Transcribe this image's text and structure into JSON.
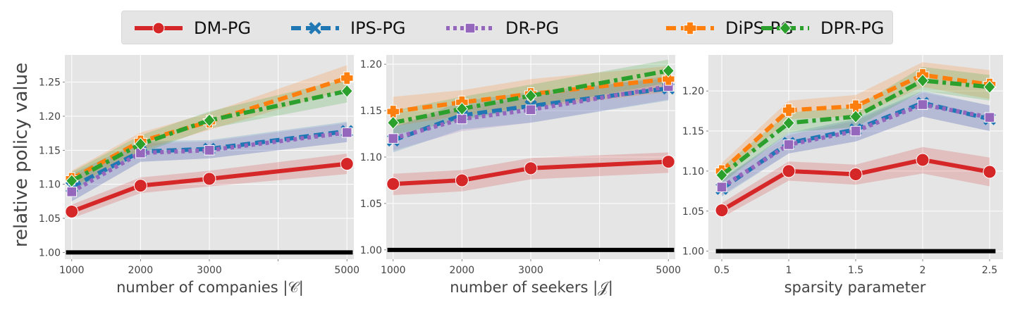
{
  "legend": {
    "items": [
      {
        "label": "DM-PG",
        "color": "#d62728",
        "marker": "circle",
        "dash": "solid"
      },
      {
        "label": "IPS-PG",
        "color": "#1f77b4",
        "marker": "x",
        "dash": "dashed"
      },
      {
        "label": "DR-PG",
        "color": "#9467bd",
        "marker": "square",
        "dash": "dotted"
      },
      {
        "label": "DiPS-PG",
        "color": "#ff7f0e",
        "marker": "plus",
        "dash": "dashed"
      },
      {
        "label": "DPR-PG",
        "color": "#2ca02c",
        "marker": "diamond",
        "dash": "dashdot"
      }
    ]
  },
  "shared_ylabel": "relative policy value",
  "chart_data": [
    {
      "type": "line",
      "xlabel": "number of companies |𝒞|",
      "ylabel": "relative policy value",
      "x": [
        1000,
        2000,
        3000,
        5000
      ],
      "xticks": [
        1000,
        2000,
        3000,
        4000,
        5000
      ],
      "xtick_labels": [
        "1000",
        "2000",
        "3000",
        "",
        "5000"
      ],
      "xlim": [
        900,
        5100
      ],
      "ylim": [
        0.99,
        1.29
      ],
      "yticks": [
        1.0,
        1.05,
        1.1,
        1.15,
        1.2,
        1.25
      ],
      "ytick_labels": [
        "1.00",
        "1.05",
        "1.10",
        "1.15",
        "1.20",
        "1.25"
      ],
      "baseline": 1.0,
      "grid": true,
      "series": [
        {
          "name": "DM-PG",
          "values": [
            1.06,
            1.098,
            1.108,
            1.13
          ],
          "lower": [
            1.05,
            1.087,
            1.097,
            1.115
          ],
          "upper": [
            1.07,
            1.11,
            1.12,
            1.145
          ]
        },
        {
          "name": "IPS-PG",
          "values": [
            1.096,
            1.148,
            1.152,
            1.178
          ],
          "lower": [
            1.075,
            1.133,
            1.138,
            1.162
          ],
          "upper": [
            1.115,
            1.163,
            1.165,
            1.192
          ]
        },
        {
          "name": "DR-PG",
          "values": [
            1.089,
            1.146,
            1.15,
            1.176
          ],
          "lower": [
            1.075,
            1.133,
            1.138,
            1.162
          ],
          "upper": [
            1.11,
            1.16,
            1.163,
            1.19
          ]
        },
        {
          "name": "DiPS-PG",
          "values": [
            1.108,
            1.163,
            1.192,
            1.256
          ],
          "lower": [
            1.095,
            1.15,
            1.18,
            1.24
          ],
          "upper": [
            1.12,
            1.176,
            1.205,
            1.275
          ]
        },
        {
          "name": "DPR-PG",
          "values": [
            1.105,
            1.159,
            1.194,
            1.237
          ],
          "lower": [
            1.09,
            1.145,
            1.182,
            1.22
          ],
          "upper": [
            1.118,
            1.172,
            1.207,
            1.255
          ]
        }
      ]
    },
    {
      "type": "line",
      "xlabel": "number of seekers |𝒥|",
      "ylabel": "",
      "x": [
        1000,
        2000,
        3000,
        5000
      ],
      "xticks": [
        1000,
        2000,
        3000,
        4000,
        5000
      ],
      "xtick_labels": [
        "1000",
        "2000",
        "3000",
        "",
        "5000"
      ],
      "xlim": [
        900,
        5100
      ],
      "ylim": [
        0.99,
        1.21
      ],
      "yticks": [
        1.0,
        1.05,
        1.1,
        1.15,
        1.2
      ],
      "ytick_labels": [
        "1.00",
        "1.05",
        "1.10",
        "1.15",
        "1.20"
      ],
      "baseline": 1.0,
      "grid": true,
      "series": [
        {
          "name": "DM-PG",
          "values": [
            1.071,
            1.075,
            1.088,
            1.095
          ],
          "lower": [
            1.059,
            1.063,
            1.076,
            1.083
          ],
          "upper": [
            1.082,
            1.086,
            1.099,
            1.105
          ]
        },
        {
          "name": "IPS-PG",
          "values": [
            1.118,
            1.145,
            1.155,
            1.174
          ],
          "lower": [
            1.105,
            1.13,
            1.137,
            1.161
          ],
          "upper": [
            1.132,
            1.16,
            1.17,
            1.185
          ]
        },
        {
          "name": "DR-PG",
          "values": [
            1.12,
            1.141,
            1.151,
            1.176
          ],
          "lower": [
            1.107,
            1.128,
            1.137,
            1.162
          ],
          "upper": [
            1.133,
            1.154,
            1.165,
            1.188
          ]
        },
        {
          "name": "DiPS-PG",
          "values": [
            1.149,
            1.159,
            1.168,
            1.184
          ],
          "lower": [
            1.133,
            1.145,
            1.153,
            1.17
          ],
          "upper": [
            1.165,
            1.172,
            1.184,
            1.198
          ]
        },
        {
          "name": "DPR-PG",
          "values": [
            1.137,
            1.152,
            1.166,
            1.193
          ],
          "lower": [
            1.124,
            1.14,
            1.153,
            1.18
          ],
          "upper": [
            1.15,
            1.165,
            1.178,
            1.205
          ]
        }
      ]
    },
    {
      "type": "line",
      "xlabel": "sparsity parameter",
      "ylabel": "",
      "x": [
        0.5,
        1.0,
        1.5,
        2.0,
        2.5
      ],
      "xticks": [
        0.5,
        1.0,
        1.5,
        2.0,
        2.5
      ],
      "xtick_labels": [
        "0.5",
        "1",
        "1.5",
        "2",
        "2.5"
      ],
      "xlim": [
        0.4,
        2.6
      ],
      "ylim": [
        0.99,
        1.245
      ],
      "yticks": [
        1.0,
        1.05,
        1.1,
        1.15,
        1.2
      ],
      "ytick_labels": [
        "1.00",
        "1.05",
        "1.10",
        "1.15",
        "1.20"
      ],
      "baseline": 1.0,
      "grid": true,
      "series": [
        {
          "name": "DM-PG",
          "values": [
            1.051,
            1.1,
            1.096,
            1.114,
            1.099
          ],
          "lower": [
            1.042,
            1.088,
            1.083,
            1.097,
            1.081
          ],
          "upper": [
            1.06,
            1.112,
            1.108,
            1.13,
            1.117
          ]
        },
        {
          "name": "IPS-PG",
          "values": [
            1.078,
            1.135,
            1.152,
            1.185,
            1.165
          ],
          "lower": [
            1.068,
            1.122,
            1.137,
            1.168,
            1.15
          ],
          "upper": [
            1.09,
            1.148,
            1.165,
            1.2,
            1.182
          ]
        },
        {
          "name": "DR-PG",
          "values": [
            1.08,
            1.133,
            1.15,
            1.183,
            1.167
          ],
          "lower": [
            1.07,
            1.122,
            1.137,
            1.168,
            1.15
          ],
          "upper": [
            1.09,
            1.145,
            1.163,
            1.198,
            1.182
          ]
        },
        {
          "name": "DiPS-PG",
          "values": [
            1.1,
            1.176,
            1.181,
            1.22,
            1.208
          ],
          "lower": [
            1.09,
            1.165,
            1.168,
            1.205,
            1.19
          ],
          "upper": [
            1.11,
            1.188,
            1.195,
            1.236,
            1.226
          ]
        },
        {
          "name": "DPR-PG",
          "values": [
            1.095,
            1.16,
            1.168,
            1.213,
            1.205
          ],
          "lower": [
            1.085,
            1.148,
            1.155,
            1.2,
            1.188
          ],
          "upper": [
            1.105,
            1.173,
            1.18,
            1.23,
            1.22
          ]
        }
      ]
    }
  ]
}
